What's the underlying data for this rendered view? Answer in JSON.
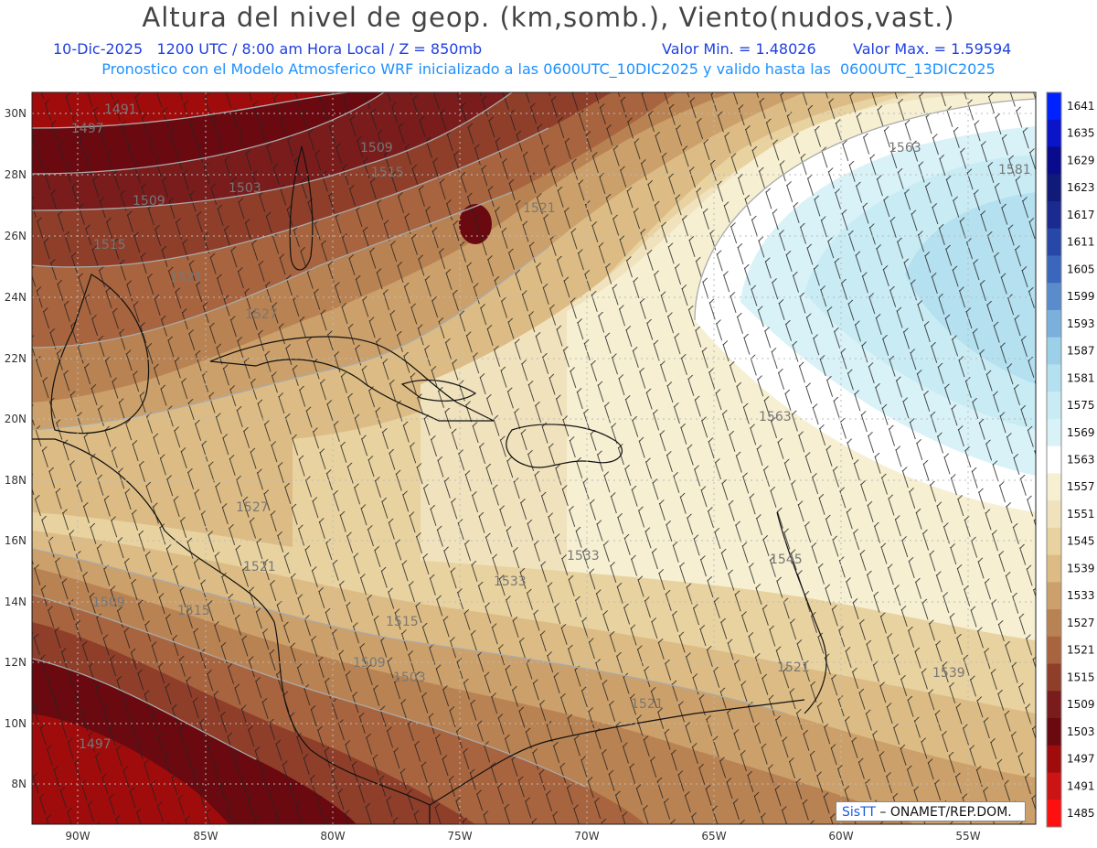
{
  "header": {
    "title": "Altura del nivel de geop. (km,somb.), Viento(nudos,vast.)",
    "valid_time": "10-Dic-2025   1200 UTC / 8:00 am Hora Local / Z = 850mb",
    "min_value": "Valor Min. = 1.48026",
    "max_value": "Valor Max. = 1.59594",
    "model_note": "Pronostico con el Modelo Atmosferico WRF inicializado a las 0600UTC_10DIC2025 y valido hasta las  0600UTC_13DIC2025"
  },
  "axes": {
    "lon_labels": [
      "90W",
      "85W",
      "80W",
      "75W",
      "70W",
      "65W",
      "60W",
      "55W"
    ],
    "lat_labels": [
      "30N",
      "28N",
      "26N",
      "24N",
      "22N",
      "20N",
      "18N",
      "16N",
      "14N",
      "12N",
      "10N",
      "8N"
    ]
  },
  "colorbar": {
    "labels": [
      "1641",
      "1635",
      "1629",
      "1623",
      "1617",
      "1611",
      "1605",
      "1599",
      "1593",
      "1587",
      "1581",
      "1575",
      "1569",
      "1563",
      "1557",
      "1551",
      "1545",
      "1539",
      "1533",
      "1527",
      "1521",
      "1515",
      "1509",
      "1503",
      "1497",
      "1491",
      "1485"
    ],
    "colors": [
      "#0022ff",
      "#0a14c8",
      "#0a0a8c",
      "#101a78",
      "#1a2a90",
      "#2848a8",
      "#3a66bc",
      "#5a8ccc",
      "#7cb0dc",
      "#9ccfe8",
      "#b4e0ef",
      "#c8ebf4",
      "#d8f2f8",
      "#ffffff",
      "#f6efd2",
      "#f0e2bc",
      "#e8d2a0",
      "#dcbc84",
      "#cca06a",
      "#b98252",
      "#a8643e",
      "#8f3e2a",
      "#7a1c1c",
      "#6a0a10",
      "#a00c0c",
      "#cc1414",
      "#ff1010"
    ]
  },
  "contour_labels": [
    "1491",
    "1497",
    "1509",
    "1503",
    "1515",
    "1509",
    "1515",
    "1521",
    "1521",
    "1527",
    "1563",
    "1581",
    "1563",
    "1527",
    "1521",
    "1533",
    "1545",
    "1509",
    "1515",
    "1515",
    "1509",
    "1503",
    "1521",
    "1539",
    "1497",
    "1521",
    "1533"
  ],
  "credit": {
    "logo": "SisTT",
    "text": "– ONAMET/REP.DOM."
  }
}
